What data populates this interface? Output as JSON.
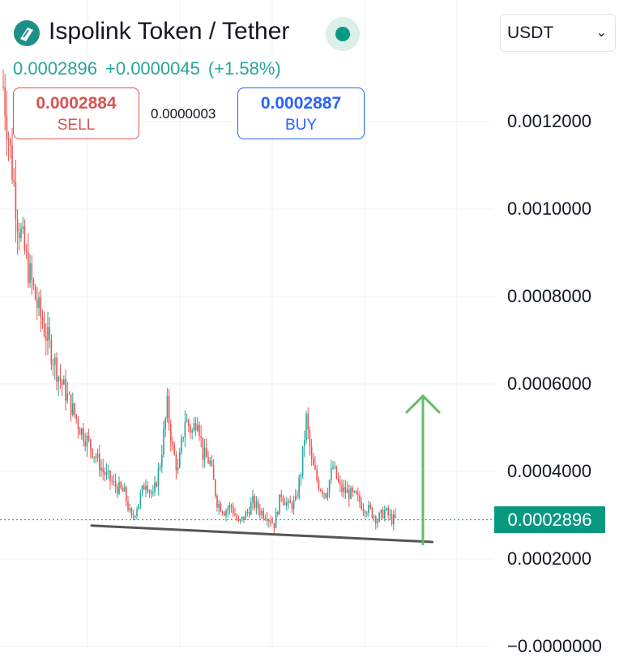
{
  "header": {
    "title": "Ispolink Token / Tether",
    "last_price": "0.0002896",
    "change": "+0.0000045",
    "change_pct": "(+1.58%)",
    "logo_icon": "ispolink-logo-icon",
    "live_indicator_icon": "market-open-dot-icon"
  },
  "trade": {
    "sell_price": "0.0002884",
    "sell_label": "SELL",
    "spread": "0.0000003",
    "buy_price": "0.0002887",
    "buy_label": "BUY"
  },
  "currency_selector": {
    "value": "USDT",
    "icon": "chevron-down-icon"
  },
  "colors": {
    "up": "#26a69a",
    "down": "#ef5350",
    "sell": "#d9534f",
    "buy": "#2962ff",
    "trend_line": "#555555",
    "arrow": "#66bb6a",
    "live_dot": "#089981",
    "price_tag": "#089981"
  },
  "chart_data": {
    "type": "candlestick",
    "symbol": "ISP/USDT",
    "y_axis": {
      "ticks": [
        0.0012,
        0.001,
        0.0008,
        0.0006,
        0.0004,
        0.0002,
        0
      ],
      "tick_labels": [
        "0.0012000",
        "0.0010000",
        "0.0008000",
        "0.0006000",
        "0.0004000",
        "0.0002000",
        "−0.0000000"
      ],
      "range": [
        -2.14e-05,
        0.0013
      ]
    },
    "last_price": 0.0002896,
    "last_price_label": "0.0002896",
    "grid": true,
    "close_path": [
      [
        0,
        0.00128
      ],
      [
        4,
        0.00113
      ],
      [
        8,
        0.00098
      ],
      [
        13,
        0.00088
      ],
      [
        19,
        0.00078
      ],
      [
        25,
        0.0007
      ],
      [
        31,
        0.00062
      ],
      [
        37,
        0.00056
      ],
      [
        43,
        0.0005
      ],
      [
        50,
        0.00045
      ],
      [
        56,
        0.0004
      ],
      [
        62,
        0.00037
      ],
      [
        68,
        0.00035
      ],
      [
        72,
        0.00029
      ],
      [
        76,
        0.00033
      ],
      [
        80,
        0.00038
      ],
      [
        84,
        0.00034
      ],
      [
        88,
        0.00042
      ],
      [
        92,
        0.00055
      ],
      [
        95,
        0.00045
      ],
      [
        98,
        0.0004
      ],
      [
        102,
        0.00052
      ],
      [
        106,
        0.00049
      ],
      [
        109,
        0.00053
      ],
      [
        112,
        0.00044
      ],
      [
        116,
        0.00042
      ],
      [
        120,
        0.00033
      ],
      [
        124,
        0.00031
      ],
      [
        128,
        0.00032
      ],
      [
        132,
        0.00028
      ],
      [
        136,
        0.0003
      ],
      [
        140,
        0.00033
      ],
      [
        144,
        0.00031
      ],
      [
        148,
        0.0003
      ],
      [
        152,
        0.00028
      ],
      [
        156,
        0.00035
      ],
      [
        160,
        0.00032
      ],
      [
        164,
        0.00033
      ],
      [
        167,
        0.0004
      ],
      [
        170,
        0.00052
      ],
      [
        173,
        0.00042
      ],
      [
        177,
        0.00037
      ],
      [
        181,
        0.00035
      ],
      [
        185,
        0.00041
      ],
      [
        189,
        0.00036
      ],
      [
        194,
        0.00035
      ],
      [
        198,
        0.00034
      ],
      [
        202,
        0.00032
      ],
      [
        206,
        0.00031
      ],
      [
        210,
        0.00029
      ],
      [
        214,
        0.00031
      ],
      [
        218,
        0.00029
      ],
      [
        220,
        0.00029
      ]
    ],
    "annotations": {
      "support_line": {
        "from": [
          -5,
          0.00028
        ],
        "to": [
          228,
          0.00025
        ]
      },
      "up_arrow": {
        "x": 222,
        "from": 0.00025,
        "to": 0.00058
      }
    }
  }
}
